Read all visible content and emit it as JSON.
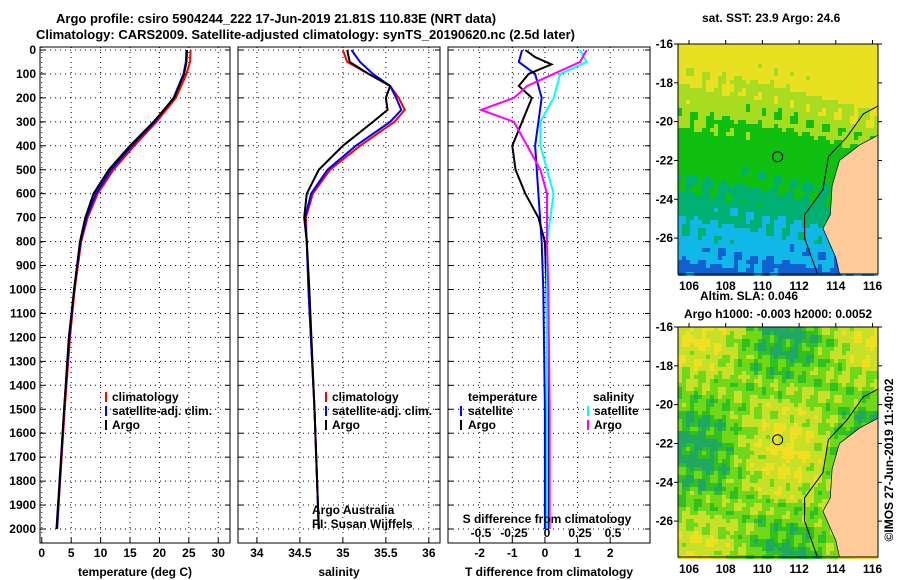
{
  "title": {
    "line1": "Argo profile: csiro 5904244_222 17-Jun-2019 21.81S 110.83E (NRT data)",
    "line2": "Climatology: CARS2009. Satellite-adjusted climatology: synTS_20190620.nc (2.5d later)"
  },
  "credit": {
    "left": "Argo Australia",
    "pi": "PI: Susan Wijffels",
    "imos": "©IMOS 27-Jun-2019 11:40:02"
  },
  "colors": {
    "clim": "#ff0000",
    "sat": "#0000ff",
    "argo": "#000000",
    "s_sat": "#00ffff",
    "s_argo": "#ff00ff",
    "land": "#ffcc99"
  },
  "chart_data": [
    {
      "type": "line",
      "title": "",
      "xlabel": "temperature (deg C)",
      "ylabel": "",
      "xlim": [
        -0.3,
        32
      ],
      "ylim": [
        2130,
        0
      ],
      "xticks": [
        0,
        5,
        10,
        15,
        20,
        25,
        30
      ],
      "yticks": [
        0,
        100,
        200,
        300,
        400,
        500,
        600,
        700,
        800,
        900,
        1000,
        1100,
        1200,
        1300,
        1400,
        1500,
        1600,
        1700,
        1800,
        1900,
        2000
      ],
      "legend": [
        "climatology",
        "satellite-adj. clim.",
        "Argo"
      ],
      "series": [
        {
          "name": "climatology",
          "depth": [
            0,
            50,
            100,
            200,
            300,
            400,
            500,
            600,
            700,
            800,
            1000,
            1200,
            1500,
            2000
          ],
          "values": [
            25.3,
            25.2,
            24.6,
            22.8,
            19.5,
            15.7,
            12.2,
            9.5,
            7.8,
            6.7,
            5.6,
            4.8,
            3.9,
            2.6
          ]
        },
        {
          "name": "satellite-adj. clim.",
          "depth": [
            0,
            50,
            100,
            200,
            300,
            400,
            500,
            600,
            700,
            800,
            1000,
            1200,
            1500,
            2000
          ],
          "values": [
            24.6,
            24.5,
            24.1,
            22.4,
            19.2,
            15.3,
            11.8,
            9.2,
            7.6,
            6.6,
            5.5,
            4.7,
            3.8,
            2.6
          ]
        },
        {
          "name": "Argo",
          "depth": [
            0,
            50,
            100,
            200,
            300,
            400,
            500,
            600,
            700,
            800,
            1000,
            1200,
            1500,
            2000
          ],
          "values": [
            24.7,
            24.6,
            24.2,
            22.5,
            19.0,
            15.0,
            11.4,
            8.8,
            7.4,
            6.5,
            5.5,
            4.6,
            3.8,
            2.5
          ]
        }
      ]
    },
    {
      "type": "line",
      "xlabel": "salinity",
      "xlim": [
        33.78,
        36.13
      ],
      "ylim": [
        2130,
        0
      ],
      "xticks": [
        34,
        34.5,
        35,
        35.5,
        36
      ],
      "legend": [
        "climatology",
        "satellite-adj. clim.",
        "Argo"
      ],
      "series": [
        {
          "name": "climatology",
          "depth": [
            0,
            50,
            100,
            150,
            200,
            250,
            300,
            400,
            500,
            600,
            700,
            800,
            1000,
            1500,
            2000
          ],
          "values": [
            35.0,
            35.05,
            35.3,
            35.55,
            35.65,
            35.72,
            35.6,
            35.2,
            34.85,
            34.65,
            34.57,
            34.58,
            34.6,
            34.67,
            34.72
          ]
        },
        {
          "name": "satellite-adj. clim.",
          "depth": [
            0,
            50,
            100,
            150,
            200,
            250,
            300,
            400,
            500,
            600,
            700,
            800,
            1000,
            1500,
            2000
          ],
          "values": [
            35.1,
            35.2,
            35.35,
            35.55,
            35.62,
            35.68,
            35.55,
            35.15,
            34.82,
            34.63,
            34.56,
            34.58,
            34.6,
            34.67,
            34.72
          ]
        },
        {
          "name": "Argo",
          "depth": [
            0,
            50,
            100,
            150,
            200,
            250,
            300,
            400,
            500,
            600,
            700,
            800,
            1000,
            1500,
            2000
          ],
          "values": [
            35.05,
            35.08,
            35.3,
            35.55,
            35.5,
            35.52,
            35.35,
            35.0,
            34.72,
            34.58,
            34.55,
            34.58,
            34.61,
            34.67,
            34.72
          ]
        }
      ]
    },
    {
      "type": "line",
      "xlabel": "T difference from climatology",
      "x2label": "S difference from climatology",
      "xlim": [
        -2.97,
        3.22
      ],
      "ylim": [
        2130,
        0
      ],
      "xticks": [
        -2,
        -1,
        0,
        1,
        2
      ],
      "x2ticks": [
        -0.5,
        -0.25,
        0,
        0.25,
        0.5
      ],
      "legend_t": {
        "title": "temperature",
        "items": [
          "satellite",
          "Argo"
        ]
      },
      "legend_s": {
        "title": "salinity",
        "items": [
          "satellite",
          "Argo"
        ]
      },
      "series": [
        {
          "name": "T satellite",
          "depth": [
            0,
            50,
            100,
            200,
            300,
            400,
            600,
            800,
            1000,
            1500,
            2000
          ],
          "values": [
            -0.7,
            -0.8,
            -0.3,
            -0.1,
            -0.2,
            -0.3,
            -0.2,
            -0.1,
            -0.05,
            0,
            0
          ]
        },
        {
          "name": "T Argo",
          "depth": [
            0,
            30,
            60,
            100,
            150,
            200,
            300,
            400,
            500,
            600,
            700,
            800,
            1000,
            1500,
            2000
          ],
          "values": [
            -0.6,
            -0.3,
            0.2,
            -0.5,
            -0.8,
            -0.4,
            -0.7,
            -1.0,
            -0.9,
            -0.6,
            -0.2,
            0,
            0.05,
            0.1,
            0.1
          ]
        },
        {
          "name": "S satellite",
          "depth": [
            0,
            50,
            100,
            200,
            300,
            400,
            600,
            800,
            1000,
            1500,
            2000
          ],
          "values": [
            0.25,
            0.3,
            0.1,
            0.05,
            -0.05,
            -0.05,
            0.05,
            0,
            0,
            0,
            0
          ]
        },
        {
          "name": "S Argo",
          "depth": [
            0,
            50,
            100,
            150,
            200,
            250,
            280,
            300,
            400,
            500,
            600,
            800,
            1000,
            1500,
            2000
          ],
          "values": [
            0.3,
            0.25,
            0.05,
            -0.15,
            -0.25,
            -0.5,
            -0.35,
            -0.25,
            -0.15,
            -0.05,
            0,
            0,
            0.01,
            0.02,
            0.02
          ]
        }
      ]
    },
    {
      "type": "heatmap",
      "title": "sat. SST: 23.9 Argo: 24.6",
      "xlim": [
        105.4,
        116.3
      ],
      "ylim": [
        -27.85,
        -16
      ],
      "xticks": [
        106,
        108,
        110,
        112,
        114,
        116
      ],
      "yticks": [
        -16,
        -18,
        -20,
        -22,
        -24,
        -26
      ],
      "marker": [
        110.83,
        -21.81
      ]
    },
    {
      "type": "heatmap",
      "title": "Altim. SLA: 0.046",
      "subtitle": "Argo h1000: -0.003 h2000: 0.0052",
      "xlim": [
        105.4,
        116.3
      ],
      "ylim": [
        -27.85,
        -16
      ],
      "xticks": [
        106,
        108,
        110,
        112,
        114,
        116
      ],
      "yticks": [
        -16,
        -18,
        -20,
        -22,
        -24,
        -26
      ],
      "marker": [
        110.83,
        -21.81
      ]
    }
  ]
}
